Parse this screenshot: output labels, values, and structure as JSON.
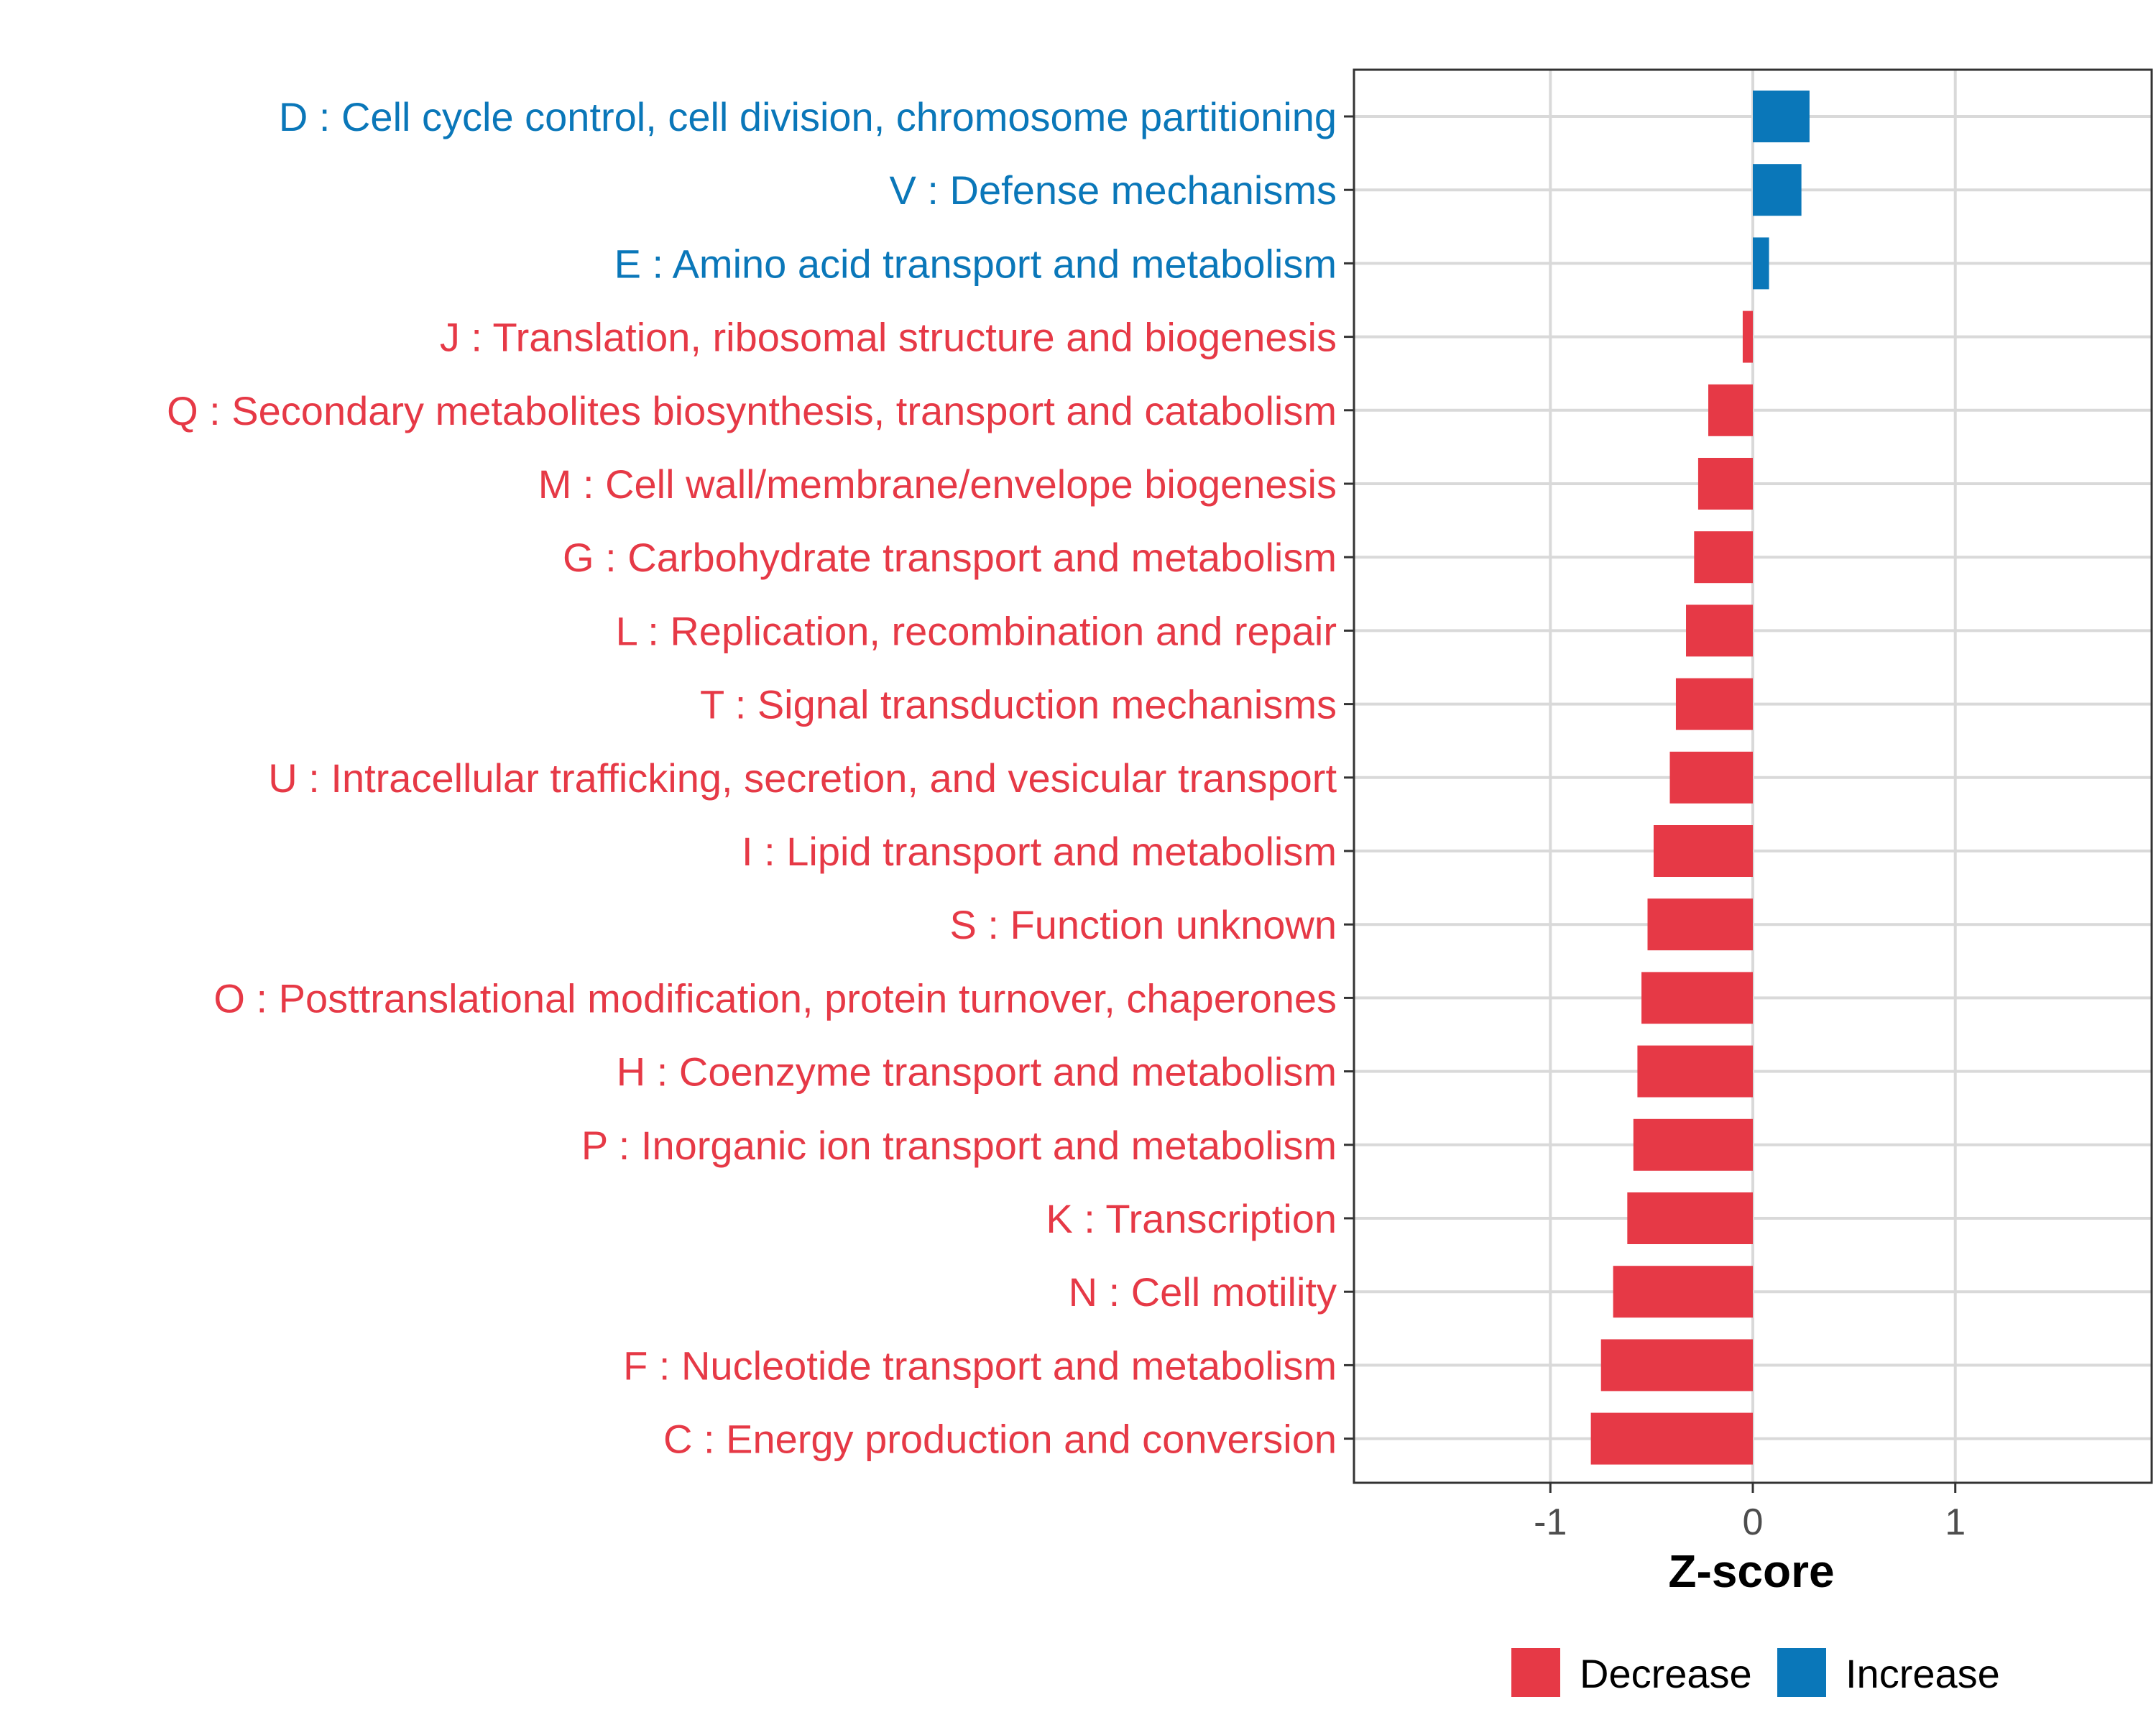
{
  "chart_data": {
    "type": "bar",
    "orientation": "horizontal",
    "xlabel": "Z-score",
    "ylabel": "",
    "xlim": [
      -1.97,
      1.97
    ],
    "xticks": [
      -1,
      0,
      1
    ],
    "xtick_labels": [
      "-1",
      "0",
      "1"
    ],
    "grid": true,
    "categories": [
      "D : Cell cycle control, cell division, chromosome partitioning",
      "V : Defense mechanisms",
      "E : Amino acid transport and metabolism",
      "J : Translation, ribosomal structure and biogenesis",
      "Q : Secondary metabolites biosynthesis, transport and catabolism",
      "M : Cell wall/membrane/envelope biogenesis",
      "G : Carbohydrate transport and metabolism",
      "L : Replication, recombination and repair",
      "T : Signal transduction mechanisms",
      "U : Intracellular trafficking, secretion, and vesicular transport",
      "I : Lipid transport and metabolism",
      "S : Function unknown",
      "O : Posttranslational modification, protein turnover, chaperones",
      "H : Coenzyme transport and metabolism",
      "P : Inorganic ion transport and metabolism",
      "K : Transcription",
      "N : Cell motility",
      "F : Nucleotide transport and metabolism",
      "C : Energy production and conversion"
    ],
    "values": [
      0.28,
      0.24,
      0.08,
      -0.05,
      -0.22,
      -0.27,
      -0.29,
      -0.33,
      -0.38,
      -0.41,
      -0.49,
      -0.52,
      -0.55,
      -0.57,
      -0.59,
      -0.62,
      -0.69,
      -0.75,
      -0.8
    ],
    "groups": [
      "Increase",
      "Increase",
      "Increase",
      "Decrease",
      "Decrease",
      "Decrease",
      "Decrease",
      "Decrease",
      "Decrease",
      "Decrease",
      "Decrease",
      "Decrease",
      "Decrease",
      "Decrease",
      "Decrease",
      "Decrease",
      "Decrease",
      "Decrease",
      "Decrease"
    ],
    "legend": {
      "position": "bottom",
      "entries": [
        {
          "label": "Decrease",
          "color": "#e63946"
        },
        {
          "label": "Increase",
          "color": "#0a77b9"
        }
      ]
    }
  },
  "colors": {
    "decrease": "#e63946",
    "increase": "#0a77b9",
    "grid": "#d9d9d9",
    "panel_border": "#333333"
  }
}
